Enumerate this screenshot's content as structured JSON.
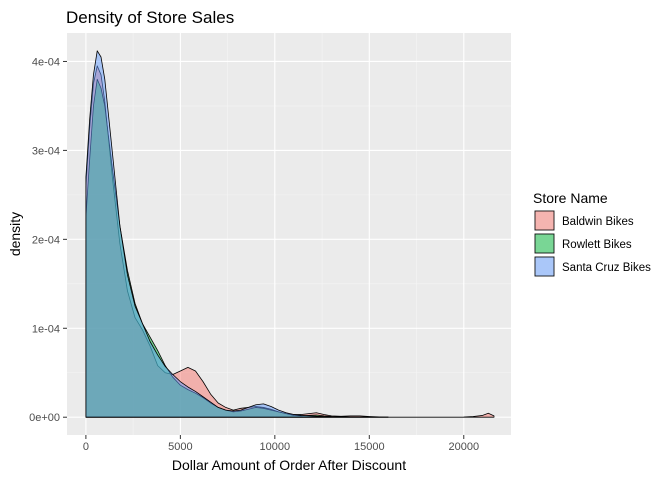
{
  "chart_data": {
    "type": "area",
    "title": "Density of Store Sales",
    "xlabel": "Dollar Amount of Order After Discount",
    "ylabel": "density",
    "xlim": [
      -1000,
      22500
    ],
    "ylim": [
      -2e-05,
      0.000432
    ],
    "x_ticks": [
      0,
      5000,
      10000,
      15000,
      20000
    ],
    "x_tick_labels": [
      "0",
      "5000",
      "10000",
      "15000",
      "20000"
    ],
    "y_ticks": [
      0,
      0.0001,
      0.0002,
      0.0003,
      0.0004
    ],
    "y_tick_labels": [
      "0e+00",
      "1e-04",
      "2e-04",
      "3e-04",
      "4e-04"
    ],
    "grid": true,
    "legend": {
      "title": "Store Name",
      "position": "right"
    },
    "series": [
      {
        "name": "Baldwin Bikes",
        "color": "#F8766D",
        "x": [
          0,
          200,
          400,
          600,
          800,
          1000,
          1400,
          1800,
          2200,
          2600,
          3000,
          3400,
          3800,
          4200,
          4600,
          5000,
          5400,
          5800,
          6200,
          6600,
          7000,
          7400,
          7800,
          8200,
          8600,
          9000,
          9400,
          9800,
          10200,
          10600,
          11000,
          11400,
          11800,
          12200,
          12600,
          13000,
          13500,
          14000,
          14500,
          15000,
          15500,
          16000,
          17000,
          18000,
          19000,
          20000,
          20500,
          21000,
          21300,
          21600
        ],
        "y": [
          0.00026,
          0.000325,
          0.000375,
          0.000395,
          0.000385,
          0.000355,
          0.00027,
          0.000195,
          0.000142,
          0.000112,
          9.8e-05,
          8e-05,
          5.8e-05,
          5e-05,
          4.8e-05,
          5.2e-05,
          5.6e-05,
          5.2e-05,
          4e-05,
          2.6e-05,
          1.6e-05,
          1.1e-05,
          8e-06,
          1e-05,
          1.1e-05,
          1.2e-05,
          1.1e-05,
          9e-06,
          6e-06,
          4e-06,
          3e-06,
          3e-06,
          4e-06,
          5e-06,
          3e-06,
          1.5e-06,
          1e-06,
          1.5e-06,
          1.5e-06,
          8e-07,
          3e-07,
          1e-07,
          0,
          0,
          0,
          2e-07,
          8e-07,
          2e-06,
          4.5e-06,
          1.5e-06
        ]
      },
      {
        "name": "Rowlett Bikes",
        "color": "#00BA38",
        "x": [
          0,
          200,
          400,
          600,
          800,
          1000,
          1400,
          1800,
          2200,
          2600,
          3000,
          3400,
          3800,
          4200,
          4600,
          5000,
          5400,
          5800,
          6200,
          6600,
          7000,
          7400,
          7800,
          8200,
          8600,
          9000,
          9400,
          9800,
          10200,
          10600,
          11000,
          11400,
          11800,
          12200,
          12600,
          13000,
          13500,
          14000,
          14500,
          15000,
          15500,
          16000
        ],
        "y": [
          0.000225,
          0.00029,
          0.00035,
          0.00038,
          0.00037,
          0.00035,
          0.00028,
          0.000215,
          0.000165,
          0.000128,
          0.000105,
          9e-05,
          7.5e-05,
          5.8e-05,
          4.5e-05,
          3.6e-05,
          3.1e-05,
          2.7e-05,
          2.2e-05,
          1.6e-05,
          1.1e-05,
          8e-06,
          6e-06,
          7e-06,
          9e-06,
          1.1e-05,
          1e-05,
          8e-06,
          6e-06,
          4e-06,
          2e-06,
          1.5e-06,
          2e-06,
          2.5e-06,
          1.5e-06,
          8e-07,
          5e-07,
          3e-07,
          2e-07,
          1e-07,
          0,
          0
        ]
      },
      {
        "name": "Santa Cruz Bikes",
        "color": "#619CFF",
        "x": [
          0,
          200,
          400,
          600,
          800,
          1000,
          1400,
          1800,
          2200,
          2600,
          3000,
          3400,
          3800,
          4200,
          4600,
          5000,
          5400,
          5800,
          6200,
          6600,
          7000,
          7400,
          7800,
          8200,
          8600,
          9000,
          9400,
          9800,
          10200,
          10600,
          11000,
          11400,
          11800,
          12200,
          12600,
          13000,
          13500,
          14000,
          15000,
          16000
        ],
        "y": [
          0.00027,
          0.000335,
          0.000385,
          0.000412,
          0.000405,
          0.00038,
          0.000298,
          0.000215,
          0.00016,
          0.000125,
          0.000105,
          8.5e-05,
          7e-05,
          5.7e-05,
          4.8e-05,
          4e-05,
          3.4e-05,
          2.9e-05,
          2.3e-05,
          1.7e-05,
          1.1e-05,
          8e-06,
          7e-06,
          8e-06,
          1.1e-05,
          1.4e-05,
          1.5e-05,
          1.2e-05,
          8e-06,
          5e-06,
          3e-06,
          2e-06,
          1.5e-06,
          1e-06,
          8e-07,
          5e-07,
          3e-07,
          2e-07,
          1e-07,
          0
        ]
      }
    ]
  }
}
